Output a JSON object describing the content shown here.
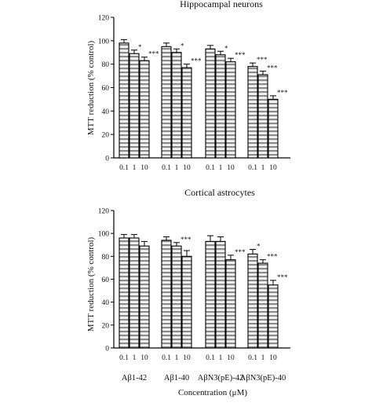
{
  "figure": {
    "xlabel": "Concentration (μM)",
    "group_labels": [
      "Aβ1-42",
      "Aβ1-40",
      "AβN3(pE)-42",
      "AβN3(pE)-40"
    ],
    "colors": {
      "bar_fill": "#f4f4f4",
      "stripe": "#8c8c8c",
      "outline": "#000000"
    }
  },
  "chart_data": [
    {
      "type": "bar",
      "title": "Hippocampal neurons",
      "ylabel": "MTT reduction (% control)",
      "ylim": [
        0,
        120
      ],
      "yticks": [
        0,
        20,
        40,
        60,
        80,
        100,
        120
      ],
      "groups": [
        "Aβ1-42",
        "Aβ1-40",
        "AβN3(pE)-42",
        "AβN3(pE)-40"
      ],
      "concentrations": [
        "0.1",
        "1",
        "10"
      ],
      "values": [
        [
          98,
          89,
          83
        ],
        [
          95,
          90,
          77
        ],
        [
          93,
          88,
          82
        ],
        [
          78,
          71,
          50
        ]
      ],
      "errors": [
        [
          3,
          3,
          3
        ],
        [
          3,
          3,
          3
        ],
        [
          3,
          3,
          3
        ],
        [
          3,
          3,
          3
        ]
      ],
      "annotations": [
        [
          "",
          "*",
          "***"
        ],
        [
          "",
          "*",
          "***"
        ],
        [
          "",
          "*",
          "***"
        ],
        [
          "***",
          "***",
          "***"
        ]
      ]
    },
    {
      "type": "bar",
      "title": "Cortical astrocytes",
      "ylabel": "MTT reduction (% control)",
      "ylim": [
        0,
        120
      ],
      "yticks": [
        0,
        20,
        40,
        60,
        80,
        100,
        120
      ],
      "groups": [
        "Aβ1-42",
        "Aβ1-40",
        "AβN3(pE)-42",
        "AβN3(pE)-40"
      ],
      "concentrations": [
        "0.1",
        "1",
        "10"
      ],
      "values": [
        [
          96,
          96,
          89
        ],
        [
          94,
          89,
          80
        ],
        [
          93,
          93,
          77
        ],
        [
          82,
          74,
          55
        ]
      ],
      "errors": [
        [
          3,
          3,
          4
        ],
        [
          3,
          3,
          5
        ],
        [
          5,
          4,
          4
        ],
        [
          4,
          3,
          4
        ]
      ],
      "annotations": [
        [
          "",
          "",
          ""
        ],
        [
          "",
          "***",
          ""
        ],
        [
          "",
          "",
          "***"
        ],
        [
          "*",
          "***",
          "***"
        ]
      ]
    }
  ]
}
